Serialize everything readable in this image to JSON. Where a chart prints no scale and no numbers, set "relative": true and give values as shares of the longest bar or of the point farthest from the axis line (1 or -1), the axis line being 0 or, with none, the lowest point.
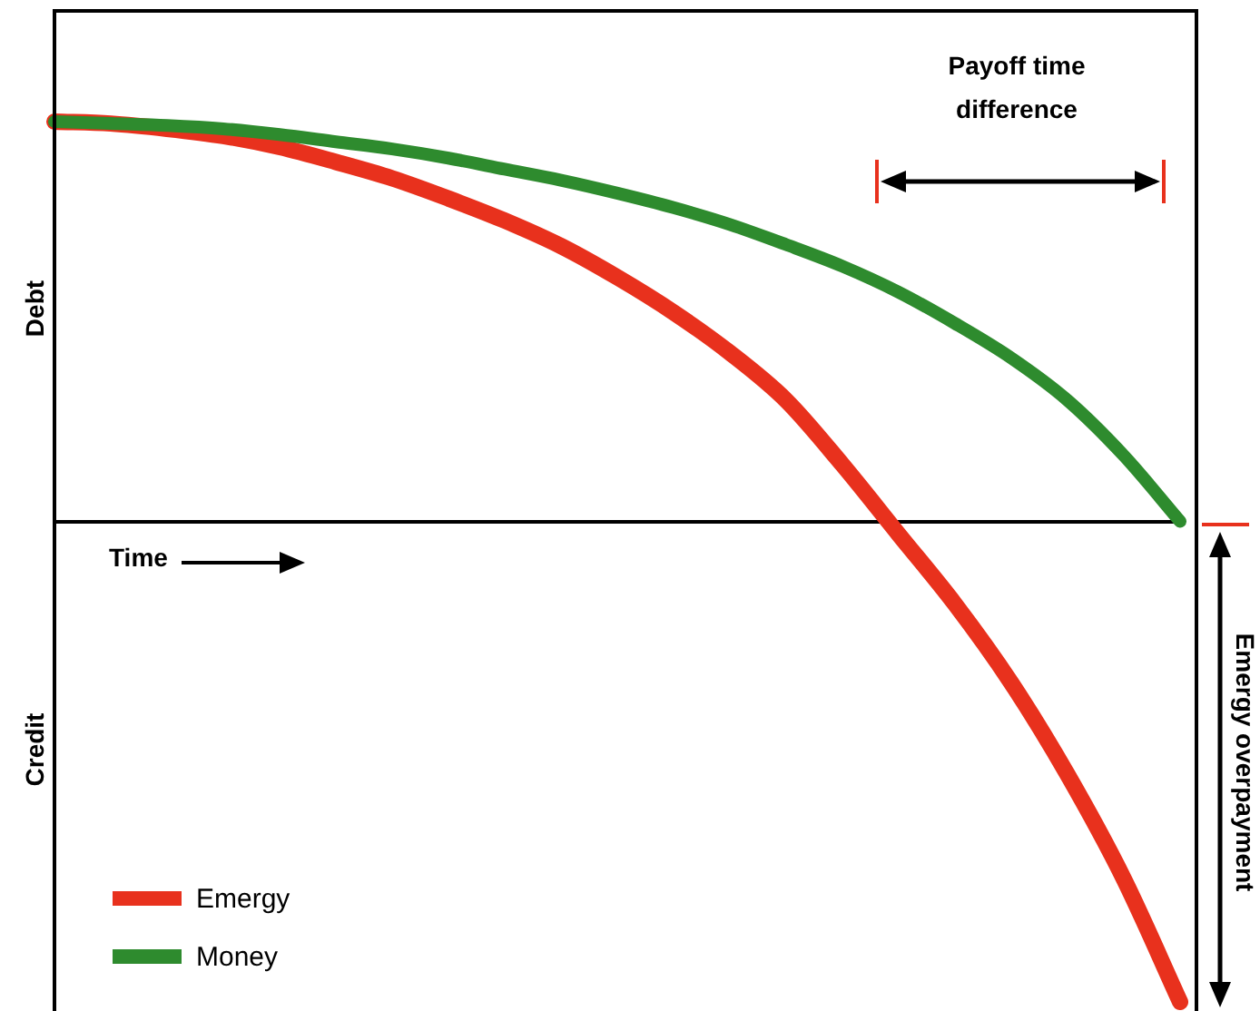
{
  "chart_data": {
    "type": "line",
    "relative": true,
    "ylabel": "Debt",
    "xlabel": "Time",
    "legend": "bottom left",
    "marker": "none",
    "line_style": "solid",
    "grid": false,
    "categories": [
      null,
      null,
      null,
      null,
      null,
      null,
      null,
      null,
      null,
      null,
      null,
      null,
      null,
      null,
      null,
      null,
      null,
      null,
      null,
      null,
      null
    ],
    "series": [
      {
        "name": "Emergy",
        "color": "#e8311d",
        "values": [
          0.832,
          0.828,
          0.817,
          0.802,
          0.779,
          0.748,
          0.714,
          0.672,
          0.626,
          0.573,
          0.508,
          0.435,
          0.351,
          0.252,
          0.118,
          -0.027,
          -0.172,
          -0.336,
          -0.527,
          -0.744,
          -1
        ]
      },
      {
        "name": "Money",
        "color": "#2e8b2e",
        "values": [
          0.832,
          0.828,
          0.824,
          0.817,
          0.805,
          0.79,
          0.775,
          0.756,
          0.733,
          0.71,
          0.683,
          0.653,
          0.618,
          0.576,
          0.531,
          0.477,
          0.412,
          0.34,
          0.252,
          0.137,
          0
        ]
      }
    ],
    "annotations": [
      "Credit",
      "Payoff time difference",
      "Emergy overpayment"
    ]
  }
}
